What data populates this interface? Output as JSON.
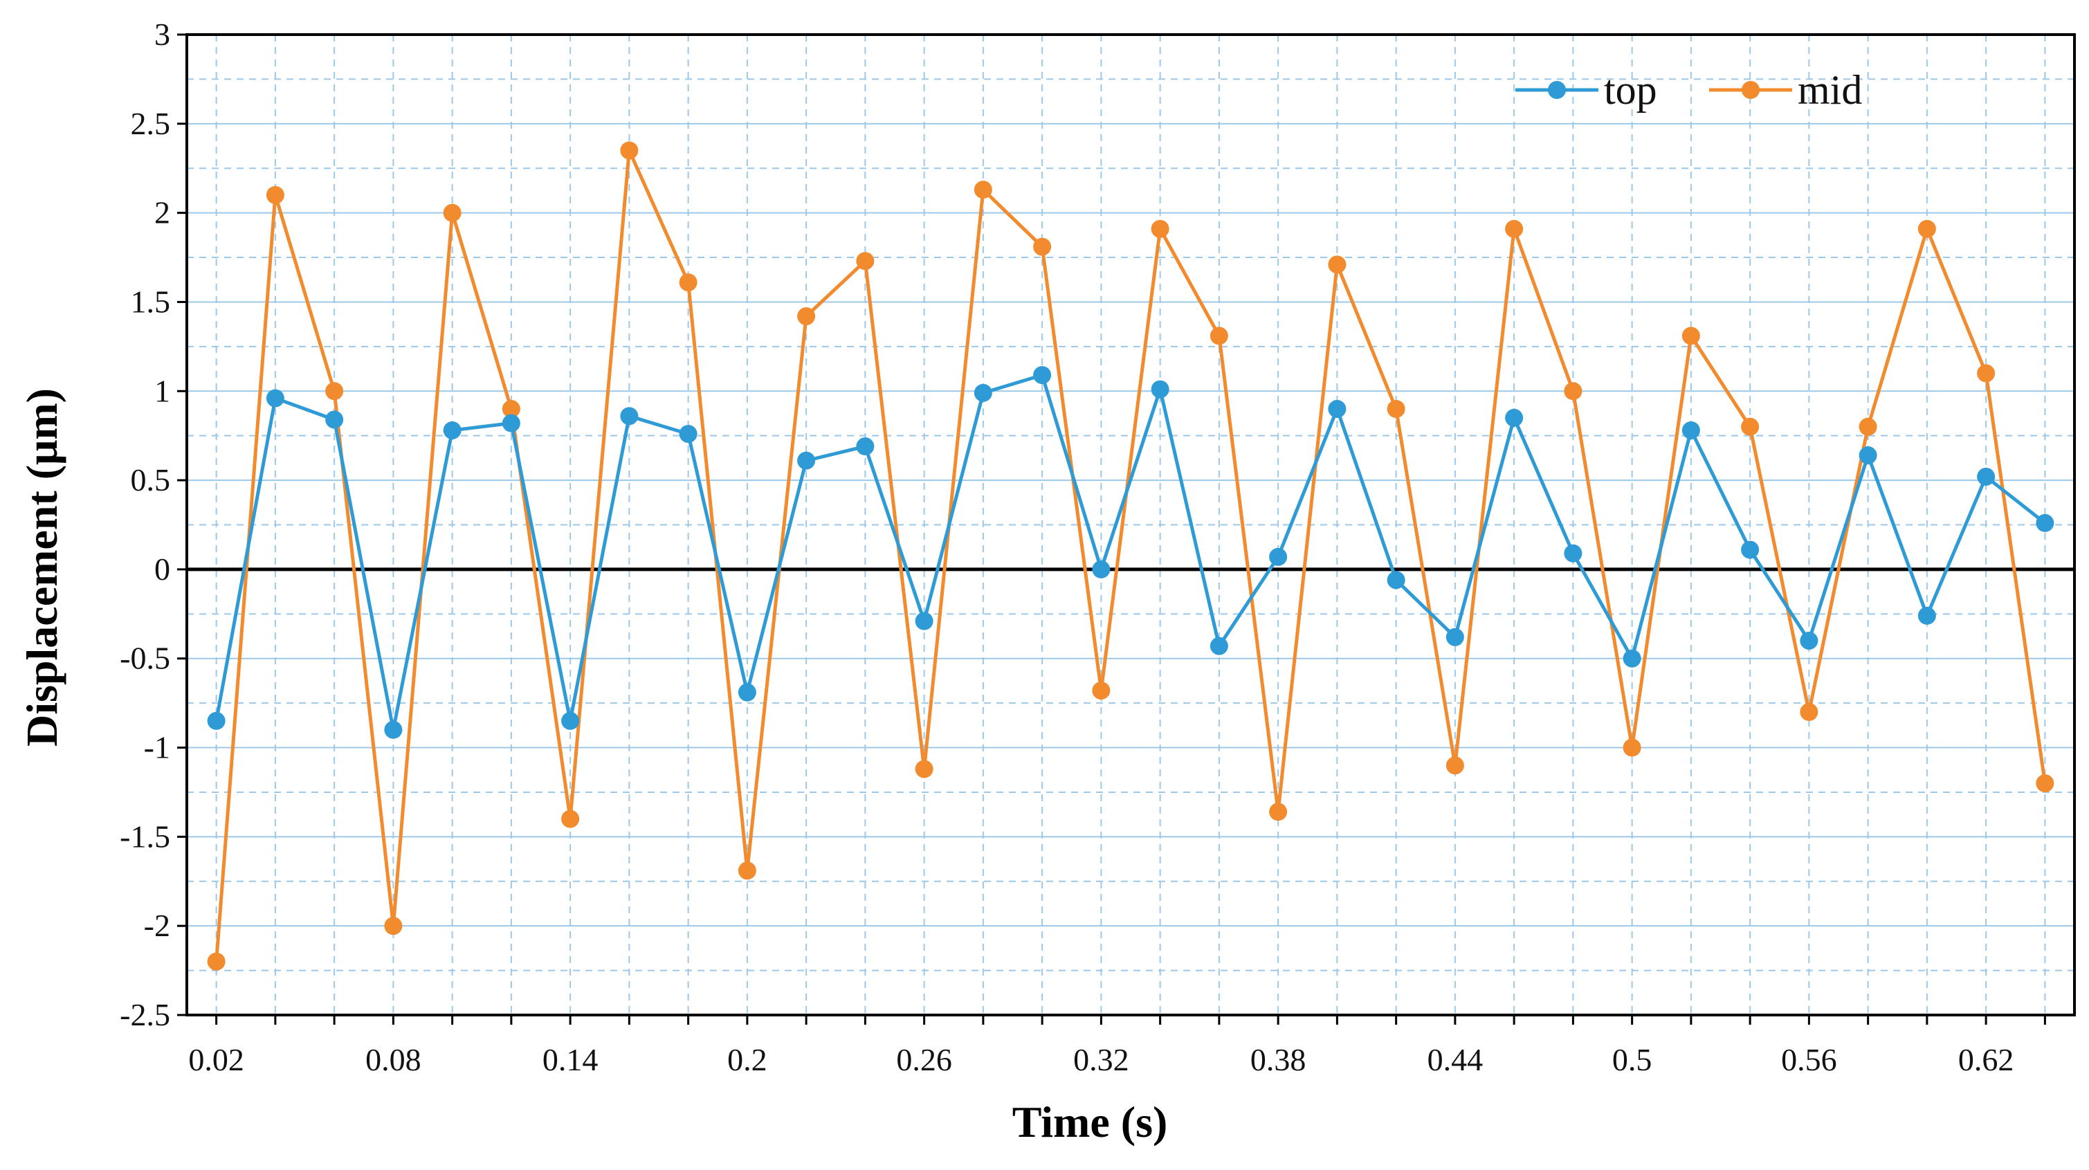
{
  "chart_data": {
    "type": "line",
    "title": "",
    "xlabel": "Time  (s)",
    "ylabel": "Displacement  (μm)",
    "x": [
      0.02,
      0.04,
      0.06,
      0.08,
      0.1,
      0.12,
      0.14,
      0.16,
      0.18,
      0.2,
      0.22,
      0.24,
      0.26,
      0.28,
      0.3,
      0.32,
      0.34,
      0.36,
      0.38,
      0.4,
      0.42,
      0.44,
      0.46,
      0.48,
      0.5,
      0.52,
      0.54,
      0.56,
      0.58,
      0.6,
      0.62,
      0.64
    ],
    "xlim": [
      0.01,
      0.65
    ],
    "ylim": [
      -2.5,
      3
    ],
    "x_tick_labels": [
      "0.02",
      "0.08",
      "0.14",
      "0.2",
      "0.26",
      "0.32",
      "0.38",
      "0.44",
      "0.5",
      "0.56",
      "0.62"
    ],
    "x_tick_values": [
      0.02,
      0.08,
      0.14,
      0.2,
      0.26,
      0.32,
      0.38,
      0.44,
      0.5,
      0.56,
      0.62
    ],
    "y_tick_labels": [
      "-2.5",
      "-2",
      "-1.5",
      "-1",
      "-0.5",
      "0",
      "0.5",
      "1",
      "1.5",
      "2",
      "2.5",
      "3"
    ],
    "y_tick_values": [
      -2.5,
      -2,
      -1.5,
      -1,
      -0.5,
      0,
      0.5,
      1,
      1.5,
      2,
      2.5,
      3
    ],
    "grid": true,
    "legend_position": "top-right",
    "series": [
      {
        "name": "top",
        "color": "#2E9BD6",
        "values": [
          -0.85,
          0.96,
          0.84,
          -0.9,
          0.78,
          0.82,
          -0.85,
          0.86,
          0.76,
          -0.69,
          0.61,
          0.69,
          -0.29,
          0.99,
          1.09,
          0.0,
          1.01,
          -0.43,
          0.07,
          0.9,
          -0.06,
          -0.38,
          0.85,
          0.09,
          -0.5,
          0.78,
          0.11,
          -0.4,
          0.64,
          -0.26,
          0.52,
          0.26
        ]
      },
      {
        "name": "mid",
        "color": "#F28A2E",
        "values": [
          -2.2,
          2.1,
          1.0,
          -2.0,
          2.0,
          0.9,
          -1.4,
          2.35,
          1.61,
          -1.69,
          1.42,
          1.73,
          -1.12,
          2.13,
          1.81,
          -0.68,
          1.91,
          1.31,
          -1.36,
          1.71,
          0.9,
          -1.1,
          1.91,
          1.0,
          -1.0,
          1.31,
          0.8,
          -0.8,
          0.8,
          1.91,
          1.1,
          -1.2
        ]
      }
    ]
  }
}
